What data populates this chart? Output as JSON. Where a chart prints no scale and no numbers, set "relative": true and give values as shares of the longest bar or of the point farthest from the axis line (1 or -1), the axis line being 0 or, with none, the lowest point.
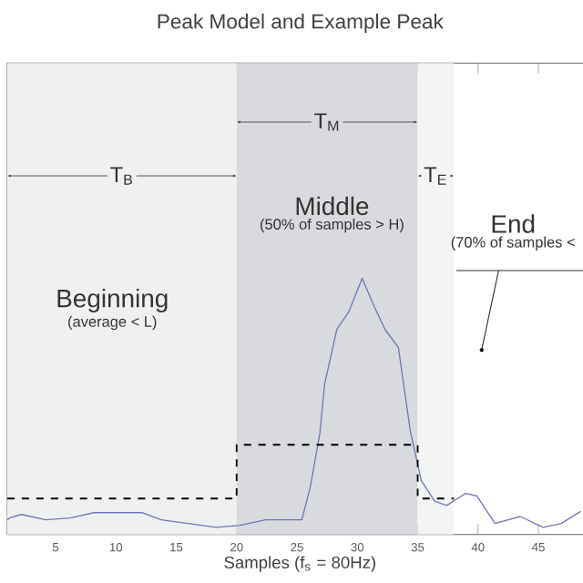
{
  "chart_data": {
    "type": "line",
    "title": "Peak Model and Example Peak",
    "xlabel": "Samples (f$_{s}$ = 80Hz)",
    "relative": true,
    "xlim": [
      1,
      49.5
    ],
    "xticks": [
      5,
      10,
      15,
      20,
      25,
      30,
      35,
      40,
      45
    ],
    "tick_labels": "x",
    "series": [
      {
        "color": "#7377b3",
        "x": [
          1,
          1.18,
          2.17,
          4.2,
          6.2,
          8.2,
          12.2,
          13.75,
          18.3,
          20.2,
          22.4,
          25.4,
          26.1,
          26.9,
          27.3,
          28.3,
          29.3,
          30.4,
          31.4,
          32.3,
          33.4,
          34.4,
          35.3,
          36.4,
          37.4,
          38.96,
          39.9,
          41.4,
          43.5,
          45.4,
          46.9,
          48.5
        ],
        "values": [
          0.057,
          0.064,
          0.078,
          0.057,
          0.064,
          0.085,
          0.085,
          0.057,
          0.028,
          0.035,
          0.057,
          0.057,
          0.184,
          0.397,
          0.59,
          0.8,
          0.87,
          1.0,
          0.89,
          0.8,
          0.73,
          0.4,
          0.21,
          0.13,
          0.113,
          0.16,
          0.15,
          0.043,
          0.07,
          0.028,
          0.043,
          0.09
        ]
      },
      {
        "type": "step",
        "color": "#000000",
        "line_style": "dashed",
        "x": [
          1,
          20,
          35,
          38
        ],
        "values": [
          0.14,
          0.35,
          0.14,
          0.14
        ]
      }
    ],
    "bands": [
      {
        "axis": "x",
        "from": 1,
        "to": 20,
        "label": "Beginning",
        "color": "#eff1f1"
      },
      {
        "axis": "x",
        "from": 20,
        "to": 35,
        "label": "Middle",
        "color": "#d8dadd"
      },
      {
        "axis": "x",
        "from": 35,
        "to": 38,
        "label": "End",
        "color": "#f3f4f4"
      }
    ],
    "annotations": [
      "(average < L)",
      "(50% of samples > H)",
      "(70% of samples <",
      "T$_{B}$",
      "T$_{M}$",
      "T$_{E}$"
    ]
  }
}
